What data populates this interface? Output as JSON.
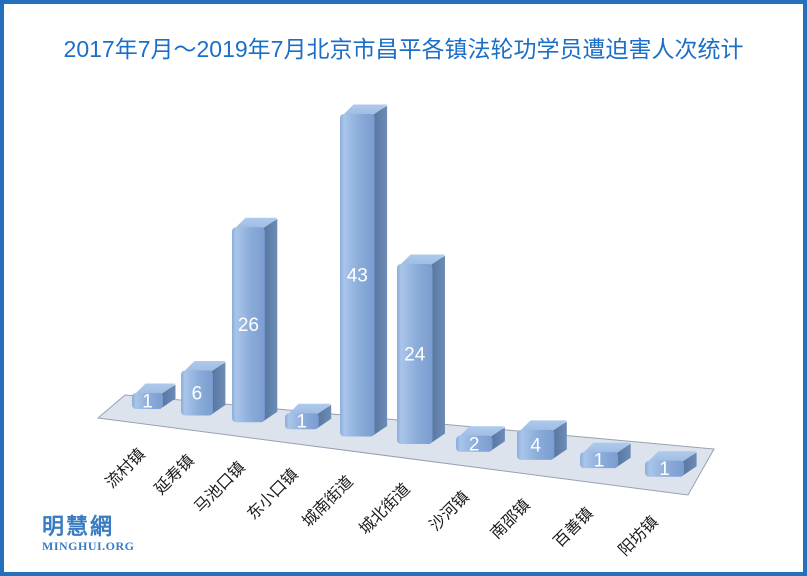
{
  "frame": {
    "border_color": "#2470ba",
    "background_color": "#ffffff"
  },
  "title": {
    "text": "2017年7月～2019年7月北京市昌平各镇法轮功学员遭迫害人次统计",
    "color": "#1c6fc7"
  },
  "watermark": {
    "cjk_text": "明慧網",
    "latin_text": "MINGHUI.ORG",
    "color": "#3a7cc1"
  },
  "chart_data": {
    "type": "bar",
    "projection": "3d-rounded-box",
    "title": "2017年7月～2019年7月北京市昌平各镇法轮功学员遭迫害人次统计",
    "categories": [
      "流村镇",
      "延寿镇",
      "马池口镇",
      "东小口镇",
      "城南街道",
      "城北街道",
      "沙河镇",
      "南邵镇",
      "百善镇",
      "阳坊镇"
    ],
    "values": [
      1,
      6,
      26,
      1,
      43,
      24,
      2,
      4,
      1,
      1
    ],
    "xlabel": "",
    "ylabel": "",
    "value_axis_visible": false,
    "gridlines": false,
    "legend": "none",
    "data_labels": {
      "visible": true,
      "color": "#ffffff"
    },
    "category_label_color": "#1a1a1a",
    "category_label_rotation_deg": -45,
    "bar_colors": {
      "front_light": "#a9c5ea",
      "front_mid": "#8badd9",
      "front_dark": "#7b9cd0",
      "side_dark": "#54739c",
      "side_light": "#6d8db8",
      "top_light": "#aecaec",
      "top_mid": "#9db9e0"
    },
    "floor": {
      "fill": "#dce3ed",
      "stroke": "#98a2ae"
    }
  }
}
